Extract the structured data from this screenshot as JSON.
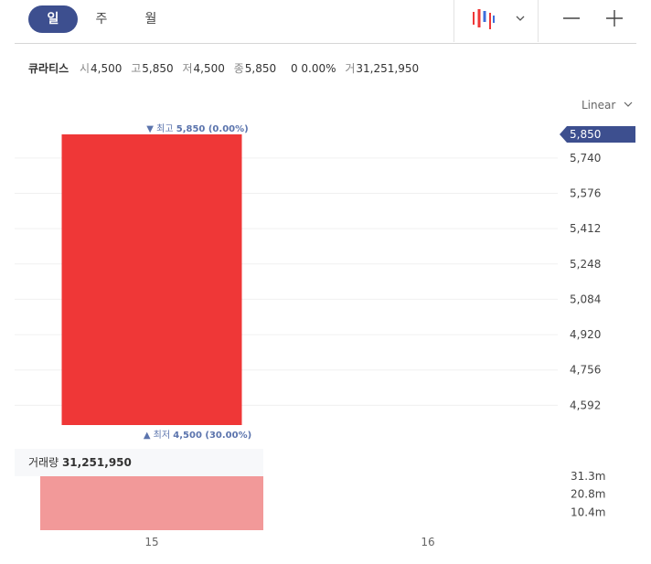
{
  "toolbar": {
    "periods": [
      "일",
      "주",
      "월"
    ],
    "active_period": "일",
    "chart_type_icon": "candlestick-icon",
    "dropdown_icon": "chevron-down-icon",
    "zoom_out_icon": "minus-icon",
    "zoom_in_icon": "plus-icon"
  },
  "quote": {
    "name": "큐라티스",
    "open_label": "시",
    "open": "4,500",
    "high_label": "고",
    "high": "5,850",
    "low_label": "저",
    "low": "4,500",
    "close_label": "종",
    "close": "5,850",
    "change": "0",
    "change_pct": "0.00%",
    "volume_label": "거",
    "volume": "31,251,950"
  },
  "scale": {
    "label": "Linear"
  },
  "volume_panel": {
    "label": "거래량",
    "value": "31,251,950"
  },
  "colors": {
    "accent": "#3d4f8f",
    "up_candle": "#ef3737",
    "volume_bar": "#f29999",
    "marker_text": "#5b74ad"
  },
  "chart_data": [
    {
      "type": "candlestick",
      "x_tick_labels": [
        "15",
        "16"
      ],
      "y_tick_labels": [
        "5,740",
        "5,576",
        "5,412",
        "5,248",
        "5,084",
        "4,920",
        "4,756",
        "4,592"
      ],
      "y_ticks": [
        5740,
        5576,
        5412,
        5248,
        5084,
        4920,
        4756,
        4592
      ],
      "ylim": [
        4500,
        5850
      ],
      "last_price_label": "5,850",
      "last_price": 5850,
      "candles": [
        {
          "x": "15",
          "open": 4500,
          "high": 5850,
          "low": 4500,
          "close": 5850
        }
      ],
      "annotations": {
        "high": {
          "label": "▼ 최고",
          "value": "5,850 (0.00%)"
        },
        "low": {
          "label": "▲ 최저",
          "value": "4,500 (30.00%)"
        }
      },
      "grid": true
    },
    {
      "type": "bar",
      "title": "거래량",
      "categories": [
        "15"
      ],
      "values": [
        31251950
      ],
      "y_tick_labels": [
        "31.3m",
        "20.8m",
        "10.4m"
      ],
      "y_ticks": [
        31300000,
        20800000,
        10400000
      ],
      "ylim": [
        0,
        31251950
      ]
    }
  ]
}
